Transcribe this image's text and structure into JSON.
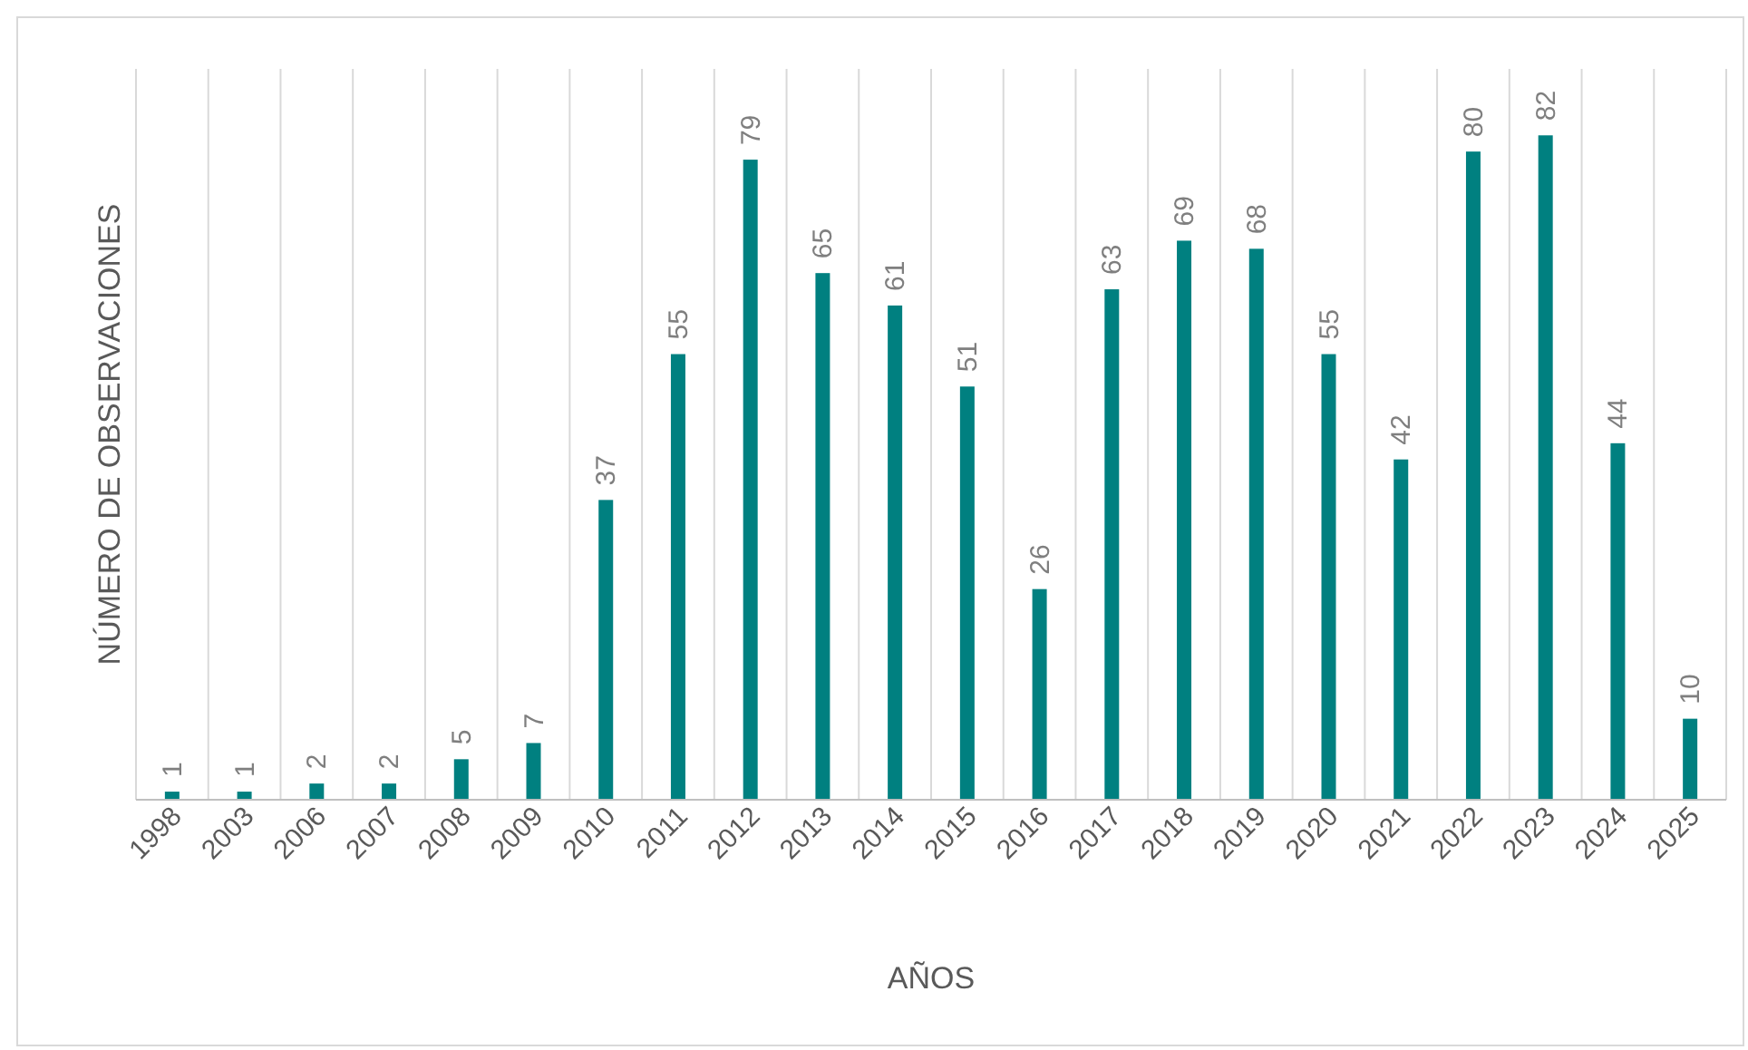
{
  "chart_data": {
    "type": "bar",
    "xlabel": "AÑOS",
    "ylabel": "NÚMERO DE OBSERVACIONES",
    "categories": [
      "1998",
      "2003",
      "2006",
      "2007",
      "2008",
      "2009",
      "2010",
      "2011",
      "2012",
      "2013",
      "2014",
      "2015",
      "2016",
      "2017",
      "2018",
      "2019",
      "2020",
      "2021",
      "2022",
      "2023",
      "2024",
      "2025"
    ],
    "values": [
      1,
      1,
      2,
      2,
      5,
      7,
      37,
      55,
      79,
      65,
      61,
      51,
      26,
      63,
      69,
      68,
      55,
      42,
      80,
      82,
      44,
      10
    ],
    "color": "#008080",
    "data_labels": true,
    "grid": "x"
  }
}
